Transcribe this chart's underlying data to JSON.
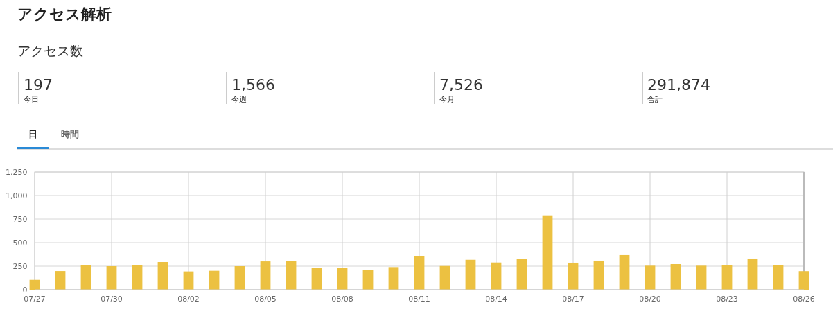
{
  "chart_data": {
    "type": "bar",
    "title": "アクセス解析",
    "subtitle": "アクセス数",
    "annotations": [
      "197",
      "今日",
      "1,566",
      "今週",
      "7,526",
      "今月",
      "291,874",
      "合計",
      "日",
      "時間"
    ],
    "categories": [
      "07/27",
      null,
      null,
      "07/30",
      null,
      null,
      "08/02",
      null,
      null,
      "08/05",
      null,
      null,
      "08/08",
      null,
      null,
      "08/11",
      null,
      null,
      "08/14",
      null,
      null,
      "08/17",
      null,
      null,
      "08/20",
      null,
      null,
      "08/23",
      null,
      null,
      "08/26"
    ],
    "values": [
      105,
      198,
      262,
      250,
      262,
      294,
      194,
      201,
      250,
      301,
      304,
      230,
      235,
      208,
      240,
      353,
      252,
      318,
      289,
      328,
      789,
      287,
      309,
      368,
      255,
      272,
      255,
      260,
      331,
      260,
      197
    ],
    "color": "#ecc141",
    "ylim": [
      0,
      1250
    ],
    "yticks": [
      0,
      250,
      500,
      750,
      {
        "value": 1000,
        "label": "1,000"
      },
      {
        "value": 1250,
        "label": "1,250"
      }
    ],
    "grid": true
  }
}
